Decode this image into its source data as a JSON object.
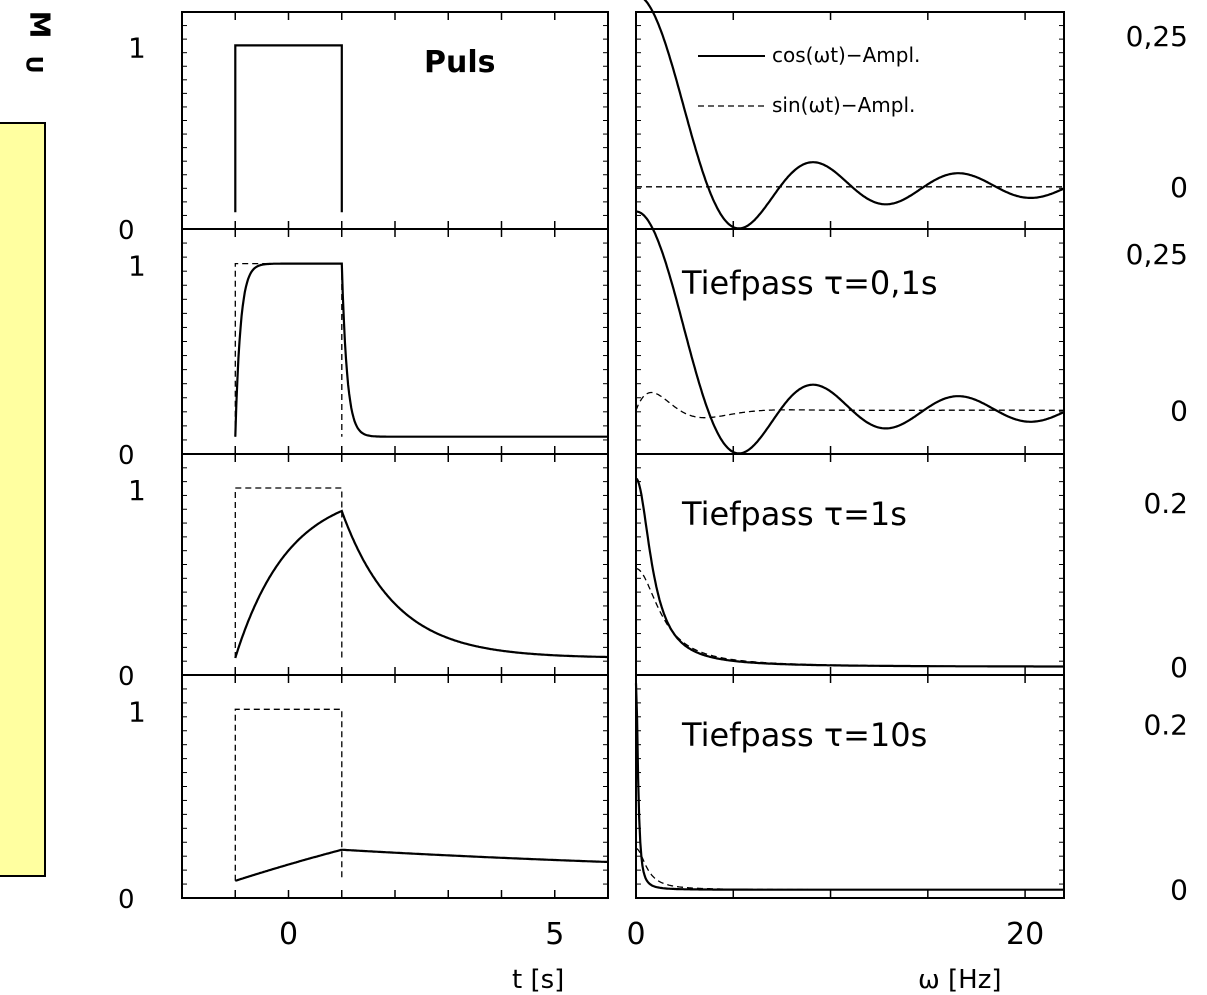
{
  "nav": {
    "m_label": "M",
    "u_label": "U",
    "colors": {
      "panel": "#ffffa0"
    }
  },
  "chart_data": [
    {
      "type": "line",
      "panel": "time",
      "label": "Puls",
      "xlim": [
        -2,
        6
      ],
      "ylim": [
        -0.1,
        1.2
      ],
      "yticks": [
        "1",
        "0"
      ],
      "series": [
        {
          "x": [
            -1,
            -1,
            1,
            1
          ],
          "y": [
            0,
            1,
            1,
            0
          ],
          "style": "solid"
        }
      ]
    },
    {
      "type": "line",
      "panel": "frequency",
      "xlim": [
        0,
        22
      ],
      "ylim": [
        -0.07,
        0.29
      ],
      "yticks": [
        "0,25",
        "0"
      ],
      "legend": [
        "cos(ωt)−Ampl.",
        "sin(ωt)−Ampl."
      ],
      "legend_position": "top-right",
      "series": [
        {
          "name": "cos(ωt)−Ampl.",
          "style": "solid",
          "kind": "sinc",
          "amp": 0.318,
          "w0": 3.7
        },
        {
          "name": "sin(ωt)−Ampl.",
          "style": "dashed",
          "kind": "const",
          "value": 0
        }
      ]
    },
    {
      "type": "line",
      "panel": "time",
      "label": "Tiefpass τ=0,1s",
      "xlim": [
        -2,
        6
      ],
      "ylim": [
        -0.1,
        1.2
      ],
      "yticks": [
        "1",
        "0"
      ],
      "series": [
        {
          "style": "solid",
          "kind": "lowpass",
          "tau": 0.1
        },
        {
          "style": "dashed",
          "x": [
            -1,
            -1,
            1,
            1
          ],
          "y": [
            0,
            1,
            1,
            0
          ]
        }
      ]
    },
    {
      "type": "line",
      "panel": "frequency",
      "xlim": [
        0,
        22
      ],
      "ylim": [
        -0.07,
        0.29
      ],
      "yticks": [
        "0,25",
        "0"
      ],
      "series": [
        {
          "style": "solid",
          "kind": "sinc",
          "amp": 0.318,
          "w0": 3.7
        },
        {
          "style": "dashed",
          "kind": "sin-lp",
          "amp": 0.04,
          "w0": 1.2
        }
      ]
    },
    {
      "type": "line",
      "panel": "time",
      "label": "Tiefpass τ=1s",
      "xlim": [
        -2,
        6
      ],
      "ylim": [
        -0.1,
        1.2
      ],
      "yticks": [
        "1",
        "0"
      ],
      "series": [
        {
          "style": "solid",
          "kind": "lowpass",
          "tau": 1
        },
        {
          "style": "dashed",
          "x": [
            -1,
            -1,
            1,
            1
          ],
          "y": [
            0,
            1,
            1,
            0
          ]
        }
      ]
    },
    {
      "type": "line",
      "panel": "frequency",
      "xlim": [
        0,
        22
      ],
      "ylim": [
        -0.01,
        0.26
      ],
      "yticks": [
        "0.2",
        "0"
      ],
      "series": [
        {
          "style": "solid",
          "kind": "decay",
          "amp": 0.23,
          "w0": 0.9
        },
        {
          "style": "dashed",
          "kind": "decay",
          "amp": 0.12,
          "w0": 1.4
        }
      ]
    },
    {
      "type": "line",
      "panel": "time",
      "label": "Tiefpass τ=10s",
      "xlim": [
        -2,
        6
      ],
      "ylim": [
        -0.1,
        1.2
      ],
      "yticks": [
        "1",
        "0"
      ],
      "series": [
        {
          "style": "solid",
          "kind": "lowpass",
          "tau": 10
        },
        {
          "style": "dashed",
          "x": [
            -1,
            -1,
            1,
            1
          ],
          "y": [
            0,
            1,
            1,
            0
          ]
        }
      ]
    },
    {
      "type": "line",
      "panel": "frequency",
      "xlim": [
        0,
        22
      ],
      "ylim": [
        -0.01,
        0.26
      ],
      "yticks": [
        "0.2",
        "0"
      ],
      "series": [
        {
          "style": "solid",
          "kind": "decay",
          "amp": 0.25,
          "w0": 0.12
        },
        {
          "style": "dashed",
          "kind": "decay",
          "amp": 0.05,
          "w0": 0.6
        }
      ]
    }
  ],
  "axes": {
    "time_xlabel": "t  [s]",
    "time_xticks": [
      {
        "v": 0,
        "label": "0"
      },
      {
        "v": 5,
        "label": "5"
      }
    ],
    "freq_xlabel": "ω  [Hz]",
    "freq_xticks": [
      {
        "v": 0,
        "label": "0"
      },
      {
        "v": 20,
        "label": "20"
      }
    ]
  }
}
